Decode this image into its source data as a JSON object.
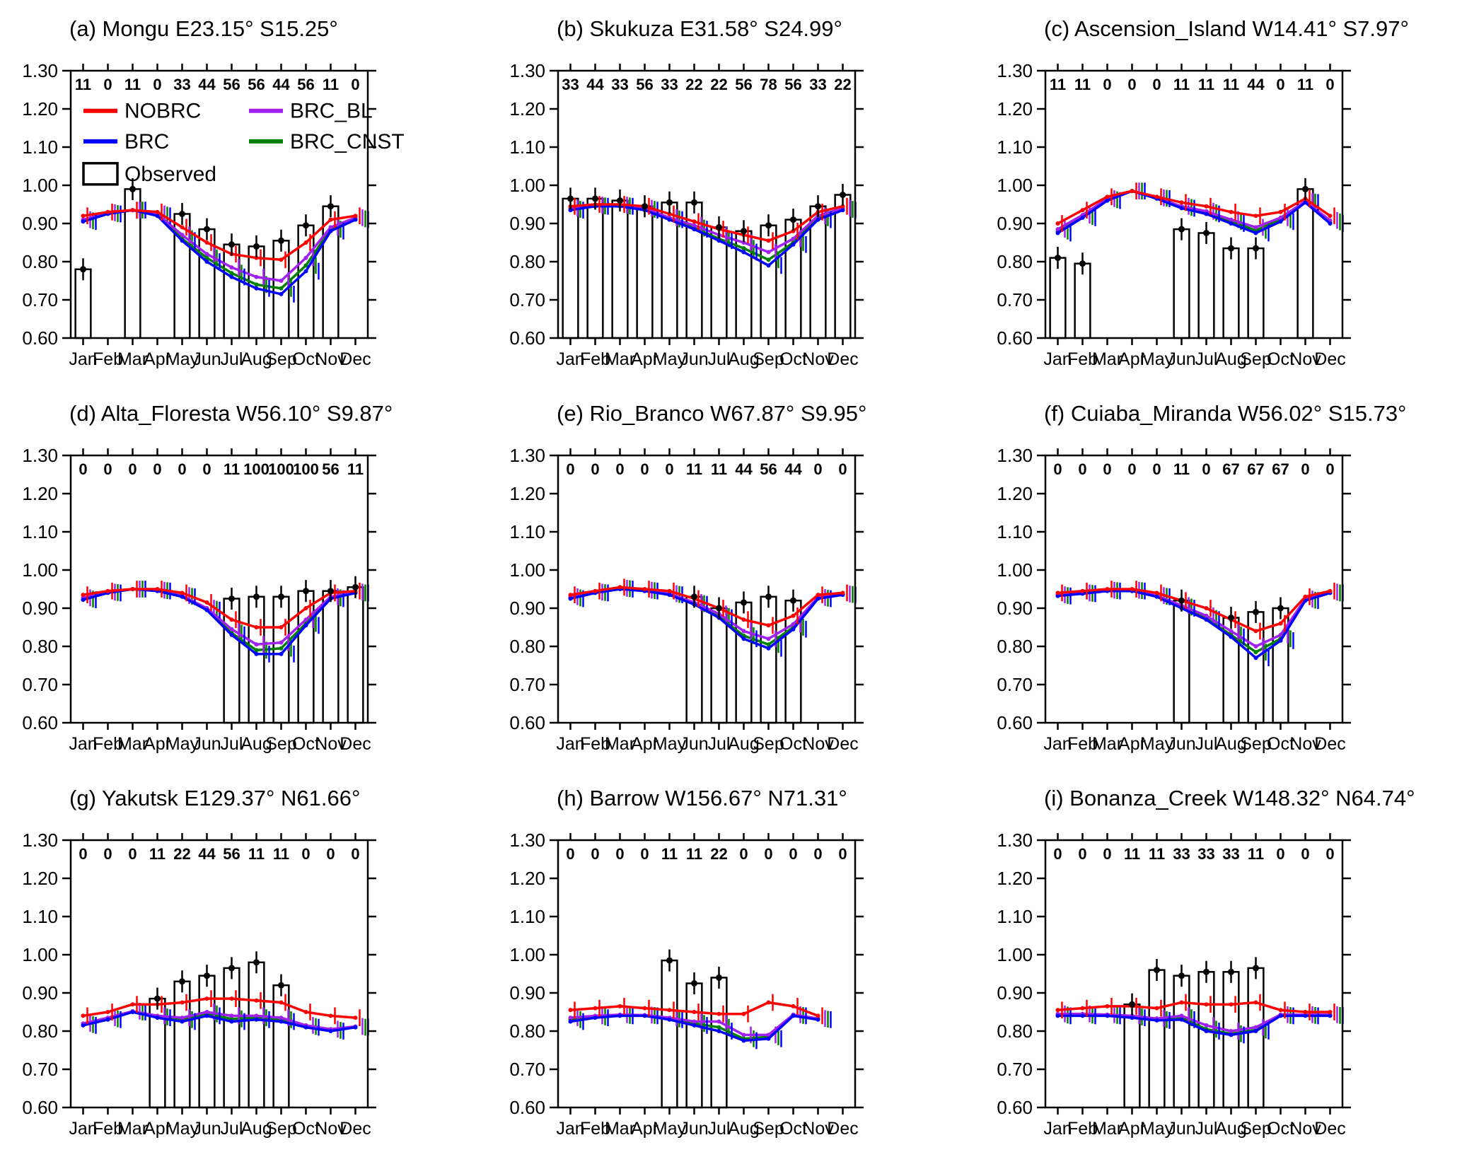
{
  "figure": {
    "background": "#ffffff",
    "legend": {
      "items": [
        {
          "label": "NOBRC",
          "color": "#ff0000"
        },
        {
          "label": "BRC",
          "color": "#0000ff"
        },
        {
          "label": "BRC_BL",
          "color": "#a020f0"
        },
        {
          "label": "BRC_CNST",
          "color": "#008000"
        },
        {
          "label": "Observed",
          "color": "#000000"
        }
      ]
    }
  },
  "chart_config": {
    "categories": [
      "Jan",
      "Feb",
      "Mar",
      "Apr",
      "May",
      "Jun",
      "Jul",
      "Aug",
      "Sep",
      "Oct",
      "Nov",
      "Dec"
    ],
    "ylim": [
      0.6,
      1.3
    ],
    "yticks": [
      "0.60",
      "0.70",
      "0.80",
      "0.90",
      "1.00",
      "1.10",
      "1.20",
      "1.30"
    ],
    "series_colors": {
      "NOBRC": "#ff0000",
      "BRC": "#0000ff",
      "BRC_BL": "#a020f0",
      "BRC_CNST": "#008000",
      "Observed": "#000000"
    },
    "observed_err": 0.018,
    "model_err": 0.022
  },
  "chart_data": [
    {
      "id": "a",
      "type": "bar",
      "title": "(a) Mongu E23.15° S15.25°",
      "counts": [
        11,
        0,
        11,
        0,
        33,
        44,
        56,
        56,
        44,
        56,
        11,
        0
      ],
      "observed": [
        0.78,
        null,
        0.99,
        null,
        0.925,
        0.885,
        0.845,
        0.84,
        0.855,
        0.895,
        0.945,
        null
      ],
      "series": [
        {
          "name": "NOBRC",
          "values": [
            0.92,
            0.93,
            0.935,
            0.93,
            0.89,
            0.85,
            0.82,
            0.81,
            0.805,
            0.85,
            0.91,
            0.92
          ]
        },
        {
          "name": "BRC",
          "values": [
            0.905,
            0.925,
            0.935,
            0.92,
            0.855,
            0.8,
            0.76,
            0.73,
            0.715,
            0.775,
            0.88,
            0.91
          ]
        },
        {
          "name": "BRC_BL",
          "values": [
            0.91,
            0.928,
            0.935,
            0.925,
            0.87,
            0.82,
            0.785,
            0.76,
            0.75,
            0.81,
            0.89,
            0.915
          ]
        },
        {
          "name": "BRC_CNST",
          "values": [
            0.907,
            0.926,
            0.935,
            0.922,
            0.86,
            0.81,
            0.77,
            0.74,
            0.73,
            0.79,
            0.885,
            0.912
          ]
        }
      ]
    },
    {
      "id": "b",
      "type": "bar",
      "title": "(b) Skukuza E31.58° S24.99°",
      "counts": [
        33,
        44,
        33,
        56,
        33,
        22,
        22,
        56,
        78,
        56,
        33,
        22
      ],
      "observed": [
        0.965,
        0.965,
        0.96,
        0.945,
        0.955,
        0.955,
        0.89,
        0.88,
        0.895,
        0.91,
        0.945,
        0.975
      ],
      "series": [
        {
          "name": "NOBRC",
          "values": [
            0.945,
            0.95,
            0.95,
            0.945,
            0.925,
            0.905,
            0.885,
            0.87,
            0.855,
            0.88,
            0.93,
            0.945
          ]
        },
        {
          "name": "BRC",
          "values": [
            0.935,
            0.945,
            0.945,
            0.935,
            0.91,
            0.885,
            0.855,
            0.825,
            0.79,
            0.845,
            0.91,
            0.935
          ]
        },
        {
          "name": "BRC_BL",
          "values": [
            0.94,
            0.948,
            0.948,
            0.94,
            0.915,
            0.895,
            0.87,
            0.85,
            0.825,
            0.86,
            0.92,
            0.94
          ]
        },
        {
          "name": "BRC_CNST",
          "values": [
            0.937,
            0.946,
            0.946,
            0.937,
            0.912,
            0.888,
            0.86,
            0.835,
            0.805,
            0.85,
            0.915,
            0.937
          ]
        }
      ]
    },
    {
      "id": "c",
      "type": "bar",
      "title": "(c) Ascension_Island W14.41° S7.97°",
      "counts": [
        11,
        11,
        0,
        0,
        0,
        11,
        11,
        11,
        44,
        0,
        11,
        0
      ],
      "observed": [
        0.81,
        0.795,
        null,
        null,
        null,
        0.885,
        0.875,
        0.835,
        0.835,
        null,
        0.99,
        null
      ],
      "series": [
        {
          "name": "NOBRC",
          "values": [
            0.9,
            0.935,
            0.97,
            0.985,
            0.97,
            0.955,
            0.945,
            0.93,
            0.92,
            0.93,
            0.965,
            0.92
          ]
        },
        {
          "name": "BRC",
          "values": [
            0.875,
            0.915,
            0.96,
            0.985,
            0.965,
            0.94,
            0.925,
            0.9,
            0.875,
            0.905,
            0.955,
            0.9
          ]
        },
        {
          "name": "BRC_BL",
          "values": [
            0.885,
            0.922,
            0.965,
            0.985,
            0.967,
            0.945,
            0.932,
            0.91,
            0.89,
            0.915,
            0.958,
            0.908
          ]
        },
        {
          "name": "BRC_CNST",
          "values": [
            0.88,
            0.918,
            0.962,
            0.985,
            0.966,
            0.942,
            0.928,
            0.905,
            0.882,
            0.91,
            0.956,
            0.904
          ]
        }
      ]
    },
    {
      "id": "d",
      "type": "bar",
      "title": "(d) Alta_Floresta W56.10° S9.87°",
      "counts": [
        0,
        0,
        0,
        0,
        0,
        0,
        11,
        100,
        100,
        100,
        56,
        11
      ],
      "observed": [
        null,
        null,
        null,
        null,
        null,
        null,
        0.925,
        0.93,
        0.93,
        0.945,
        0.945,
        0.955
      ],
      "series": [
        {
          "name": "NOBRC",
          "values": [
            0.935,
            0.945,
            0.95,
            0.95,
            0.94,
            0.915,
            0.87,
            0.85,
            0.85,
            0.9,
            0.94,
            0.945
          ]
        },
        {
          "name": "BRC",
          "values": [
            0.922,
            0.94,
            0.95,
            0.945,
            0.93,
            0.895,
            0.83,
            0.78,
            0.78,
            0.855,
            0.925,
            0.94
          ]
        },
        {
          "name": "BRC_BL",
          "values": [
            0.927,
            0.942,
            0.95,
            0.947,
            0.933,
            0.9,
            0.845,
            0.805,
            0.81,
            0.87,
            0.93,
            0.942
          ]
        },
        {
          "name": "BRC_CNST",
          "values": [
            0.924,
            0.941,
            0.95,
            0.946,
            0.931,
            0.897,
            0.835,
            0.79,
            0.795,
            0.86,
            0.927,
            0.94
          ]
        }
      ]
    },
    {
      "id": "e",
      "type": "bar",
      "title": "(e) Rio_Branco W67.87° S9.95°",
      "counts": [
        0,
        0,
        0,
        0,
        0,
        11,
        11,
        44,
        56,
        44,
        0,
        0
      ],
      "observed": [
        null,
        null,
        null,
        null,
        null,
        0.93,
        0.9,
        0.915,
        0.93,
        0.92,
        null,
        null
      ],
      "series": [
        {
          "name": "NOBRC",
          "values": [
            0.935,
            0.945,
            0.955,
            0.95,
            0.945,
            0.925,
            0.9,
            0.87,
            0.855,
            0.88,
            0.935,
            0.94
          ]
        },
        {
          "name": "BRC",
          "values": [
            0.925,
            0.94,
            0.95,
            0.945,
            0.935,
            0.91,
            0.875,
            0.82,
            0.795,
            0.845,
            0.925,
            0.935
          ]
        },
        {
          "name": "BRC_BL",
          "values": [
            0.93,
            0.942,
            0.952,
            0.947,
            0.938,
            0.915,
            0.885,
            0.84,
            0.82,
            0.858,
            0.928,
            0.937
          ]
        },
        {
          "name": "BRC_CNST",
          "values": [
            0.927,
            0.941,
            0.951,
            0.946,
            0.936,
            0.912,
            0.878,
            0.828,
            0.805,
            0.85,
            0.926,
            0.936
          ]
        }
      ]
    },
    {
      "id": "f",
      "type": "bar",
      "title": "(f) Cuiaba_Miranda W56.02° S15.73°",
      "counts": [
        0,
        0,
        0,
        0,
        0,
        11,
        0,
        67,
        67,
        67,
        0,
        0
      ],
      "observed": [
        null,
        null,
        null,
        null,
        null,
        0.92,
        null,
        0.875,
        0.89,
        0.9,
        null,
        null
      ],
      "series": [
        {
          "name": "NOBRC",
          "values": [
            0.94,
            0.945,
            0.95,
            0.95,
            0.94,
            0.92,
            0.9,
            0.87,
            0.84,
            0.86,
            0.93,
            0.945
          ]
        },
        {
          "name": "BRC",
          "values": [
            0.932,
            0.938,
            0.945,
            0.945,
            0.93,
            0.9,
            0.87,
            0.825,
            0.77,
            0.815,
            0.92,
            0.94
          ]
        },
        {
          "name": "BRC_BL",
          "values": [
            0.935,
            0.94,
            0.947,
            0.947,
            0.933,
            0.907,
            0.88,
            0.84,
            0.8,
            0.83,
            0.924,
            0.942
          ]
        },
        {
          "name": "BRC_CNST",
          "values": [
            0.933,
            0.939,
            0.946,
            0.946,
            0.931,
            0.903,
            0.873,
            0.83,
            0.785,
            0.82,
            0.921,
            0.94
          ]
        }
      ]
    },
    {
      "id": "g",
      "type": "bar",
      "title": "(g) Yakutsk E129.37° N61.66°",
      "counts": [
        0,
        0,
        0,
        11,
        22,
        44,
        56,
        11,
        11,
        0,
        0,
        0
      ],
      "observed": [
        null,
        null,
        null,
        0.885,
        0.93,
        0.945,
        0.965,
        0.98,
        0.92,
        null,
        null,
        null
      ],
      "series": [
        {
          "name": "NOBRC",
          "values": [
            0.84,
            0.85,
            0.87,
            0.87,
            0.875,
            0.885,
            0.885,
            0.88,
            0.875,
            0.85,
            0.84,
            0.835
          ]
        },
        {
          "name": "BRC",
          "values": [
            0.815,
            0.83,
            0.85,
            0.835,
            0.825,
            0.84,
            0.825,
            0.83,
            0.825,
            0.81,
            0.8,
            0.81
          ]
        },
        {
          "name": "BRC_BL",
          "values": [
            0.82,
            0.835,
            0.852,
            0.84,
            0.835,
            0.85,
            0.84,
            0.84,
            0.835,
            0.815,
            0.805,
            0.812
          ]
        },
        {
          "name": "BRC_CNST",
          "values": [
            0.817,
            0.832,
            0.85,
            0.837,
            0.83,
            0.845,
            0.832,
            0.835,
            0.83,
            0.812,
            0.802,
            0.81
          ]
        }
      ]
    },
    {
      "id": "h",
      "type": "bar",
      "title": "(h) Barrow W156.67° N71.31°",
      "counts": [
        0,
        0,
        0,
        0,
        11,
        11,
        22,
        0,
        0,
        0,
        0,
        0
      ],
      "observed": [
        null,
        null,
        null,
        null,
        0.985,
        0.925,
        0.94,
        null,
        null,
        null,
        null,
        null
      ],
      "series": [
        {
          "name": "NOBRC",
          "values": [
            0.855,
            0.86,
            0.865,
            0.86,
            0.855,
            0.85,
            0.845,
            0.845,
            0.875,
            0.865,
            0.84,
            null
          ]
        },
        {
          "name": "BRC",
          "values": [
            0.825,
            0.835,
            0.84,
            0.84,
            0.83,
            0.815,
            0.8,
            0.775,
            0.78,
            0.84,
            0.83,
            null
          ]
        },
        {
          "name": "BRC_BL",
          "values": [
            0.835,
            0.84,
            0.843,
            0.842,
            0.835,
            0.825,
            0.825,
            0.79,
            0.79,
            0.843,
            0.833,
            null
          ]
        },
        {
          "name": "BRC_CNST",
          "values": [
            0.83,
            0.837,
            0.841,
            0.841,
            0.832,
            0.82,
            0.81,
            0.78,
            0.785,
            0.841,
            0.831,
            null
          ]
        }
      ]
    },
    {
      "id": "i",
      "type": "bar",
      "title": "(i) Bonanza_Creek W148.32° N64.74°",
      "counts": [
        0,
        0,
        0,
        11,
        11,
        33,
        33,
        33,
        11,
        0,
        0,
        0
      ],
      "observed": [
        null,
        null,
        null,
        0.87,
        0.96,
        0.945,
        0.955,
        0.955,
        0.965,
        null,
        null,
        null
      ],
      "series": [
        {
          "name": "NOBRC",
          "values": [
            0.855,
            0.86,
            0.865,
            0.865,
            0.86,
            0.875,
            0.87,
            0.87,
            0.875,
            0.855,
            0.85,
            0.85
          ]
        },
        {
          "name": "BRC",
          "values": [
            0.84,
            0.84,
            0.84,
            0.835,
            0.828,
            0.83,
            0.8,
            0.79,
            0.8,
            0.84,
            0.84,
            0.84
          ]
        },
        {
          "name": "BRC_BL",
          "values": [
            0.845,
            0.845,
            0.843,
            0.84,
            0.833,
            0.84,
            0.815,
            0.8,
            0.81,
            0.843,
            0.843,
            0.843
          ]
        },
        {
          "name": "BRC_CNST",
          "values": [
            0.842,
            0.842,
            0.841,
            0.837,
            0.83,
            0.835,
            0.805,
            0.793,
            0.803,
            0.841,
            0.841,
            0.841
          ]
        }
      ]
    }
  ]
}
